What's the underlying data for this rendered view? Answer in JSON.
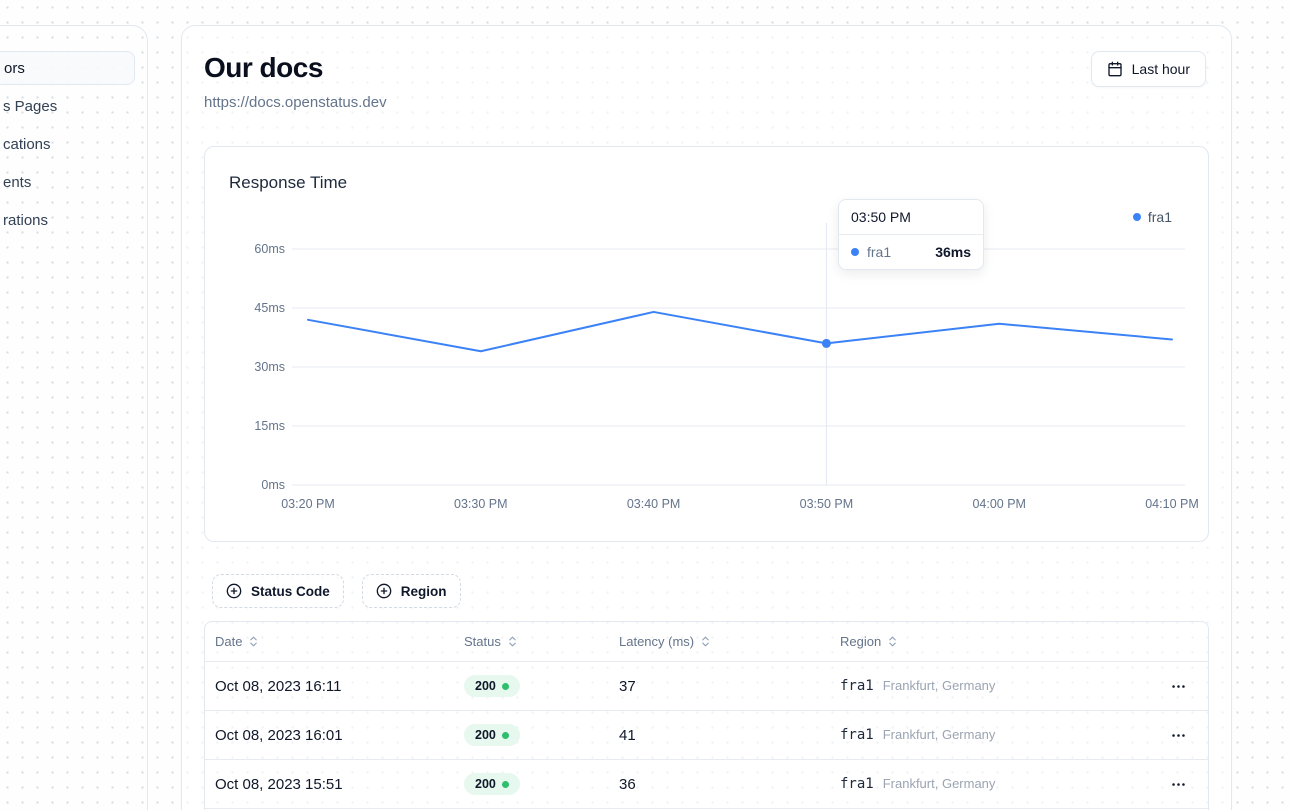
{
  "sidebar": {
    "items": [
      {
        "label": "ors",
        "active": true
      },
      {
        "label": "s Pages",
        "active": false
      },
      {
        "label": "cations",
        "active": false
      },
      {
        "label": "ents",
        "active": false
      },
      {
        "label": "rations",
        "active": false
      }
    ]
  },
  "header": {
    "title": "Our docs",
    "url": "https://docs.openstatus.dev",
    "range_button": "Last hour"
  },
  "chart_card": {
    "title": "Response Time",
    "tooltip": {
      "time": "03:50 PM",
      "series": "fra1",
      "value": "36ms"
    }
  },
  "chart_data": {
    "type": "line",
    "title": "Response Time",
    "x": [
      "03:20 PM",
      "03:30 PM",
      "03:40 PM",
      "03:50 PM",
      "04:00 PM",
      "04:10 PM"
    ],
    "series": [
      {
        "name": "fra1",
        "color": "#3b82f6",
        "values": [
          42,
          34,
          44,
          36,
          41,
          37
        ]
      }
    ],
    "ylabel": "ms",
    "ylim": [
      0,
      60
    ],
    "y_ticks": [
      0,
      15,
      30,
      45,
      60
    ],
    "y_tick_labels": [
      "0ms",
      "15ms",
      "30ms",
      "45ms",
      "60ms"
    ],
    "grid": true,
    "legend_position": "top-right",
    "highlight": {
      "x_index": 3,
      "time": "03:50 PM",
      "series": "fra1",
      "value": 36
    }
  },
  "filters": {
    "status_code": "Status Code",
    "region": "Region"
  },
  "table": {
    "columns": [
      "Date",
      "Status",
      "Latency (ms)",
      "Region"
    ],
    "rows": [
      {
        "date": "Oct 08, 2023 16:11",
        "status": "200",
        "latency": "37",
        "region_code": "fra1",
        "region_name": "Frankfurt, Germany"
      },
      {
        "date": "Oct 08, 2023 16:01",
        "status": "200",
        "latency": "41",
        "region_code": "fra1",
        "region_name": "Frankfurt, Germany"
      },
      {
        "date": "Oct 08, 2023 15:51",
        "status": "200",
        "latency": "36",
        "region_code": "fra1",
        "region_name": "Frankfurt, Germany"
      }
    ]
  },
  "colors": {
    "accent_blue": "#3b82f6",
    "status_green": "#2fbe6e",
    "badge_bg": "#e7f8ee",
    "border": "#e2e8f0",
    "muted_text": "#64748b",
    "grid_line": "#e6eaef"
  }
}
